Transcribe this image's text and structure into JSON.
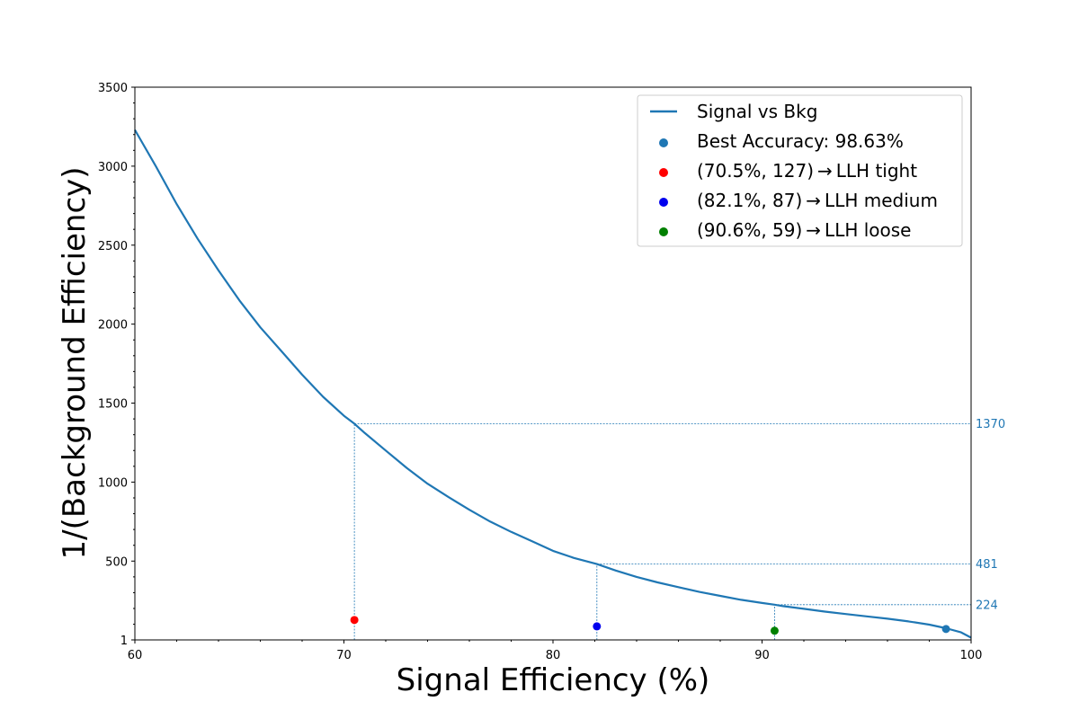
{
  "chart_data": {
    "type": "line",
    "xlabel": "Signal Efficiency (%)",
    "ylabel": "1/(Background Efficiency)",
    "xlim": [
      60,
      100
    ],
    "ylim": [
      1,
      3500
    ],
    "x_ticks": [
      {
        "value": 60,
        "label": "60"
      },
      {
        "value": 70,
        "label": "70"
      },
      {
        "value": 80,
        "label": "80"
      },
      {
        "value": 90,
        "label": "90"
      },
      {
        "value": 100,
        "label": "100"
      }
    ],
    "y_ticks": [
      {
        "value": 1,
        "label": "1"
      },
      {
        "value": 500,
        "label": "500"
      },
      {
        "value": 1000,
        "label": "1000"
      },
      {
        "value": 1500,
        "label": "1500"
      },
      {
        "value": 2000,
        "label": "2000"
      },
      {
        "value": 2500,
        "label": "2500"
      },
      {
        "value": 3000,
        "label": "3000"
      },
      {
        "value": 3500,
        "label": "3500"
      }
    ],
    "legend_position": "top-right",
    "grid": false,
    "series": [
      {
        "name": "Signal vs Bkg",
        "color": "#1f77b4",
        "x": [
          60,
          61,
          62,
          63,
          64,
          65,
          66,
          67,
          68,
          69,
          70,
          70.5,
          71,
          72,
          73,
          74,
          75,
          76,
          77,
          78,
          79,
          80,
          81,
          82.1,
          83,
          84,
          85,
          86,
          87,
          88,
          89,
          90,
          90.6,
          91,
          92,
          93,
          94,
          95,
          96,
          97,
          98,
          98.8,
          99.5,
          100
        ],
        "y": [
          3230,
          3000,
          2760,
          2540,
          2340,
          2150,
          1980,
          1830,
          1680,
          1540,
          1420,
          1370,
          1310,
          1200,
          1090,
          990,
          905,
          825,
          750,
          685,
          625,
          565,
          520,
          481,
          440,
          400,
          365,
          335,
          305,
          280,
          255,
          235,
          224,
          215,
          198,
          180,
          165,
          150,
          135,
          118,
          98,
          75,
          50,
          15
        ]
      }
    ],
    "points": [
      {
        "name": "Best Accuracy:  98.63%",
        "x": 98.8,
        "y": 70,
        "color": "#1f77b4"
      },
      {
        "name": "(70.5%, 127)$\\rightarrow$LLH tight",
        "label": "(70.5%, 127) → LLH tight",
        "x": 70.5,
        "y": 127,
        "color": "#ff0000"
      },
      {
        "name": "(82.1%,  87)$\\rightarrow$LLH medium",
        "label": "(82.1%,  87) → LLH medium",
        "x": 82.1,
        "y": 87,
        "color": "#0000ee"
      },
      {
        "name": "(90.6%,  59)$\\rightarrow$LLH loose",
        "label": "(90.6%,  59) → LLH loose",
        "x": 90.6,
        "y": 59,
        "color": "#008000"
      }
    ],
    "reference_lines": [
      {
        "x": 70.5,
        "y": 1370,
        "label": "1370"
      },
      {
        "x": 82.1,
        "y": 481,
        "label": "481"
      },
      {
        "x": 90.6,
        "y": 224,
        "label": "224"
      }
    ],
    "legend": [
      {
        "label": "Signal vs Bkg",
        "kind": "line",
        "color": "#1f77b4"
      },
      {
        "label": "Best Accuracy:  98.63%",
        "kind": "dot",
        "color": "#1f77b4"
      },
      {
        "label": "(70.5%, 127) → LLH tight",
        "kind": "dot",
        "color": "#ff0000"
      },
      {
        "label": "(82.1%,  87) → LLH medium",
        "kind": "dot",
        "color": "#0000ee"
      },
      {
        "label": "(90.6%,  59) → LLH loose",
        "kind": "dot",
        "color": "#008000"
      }
    ]
  }
}
